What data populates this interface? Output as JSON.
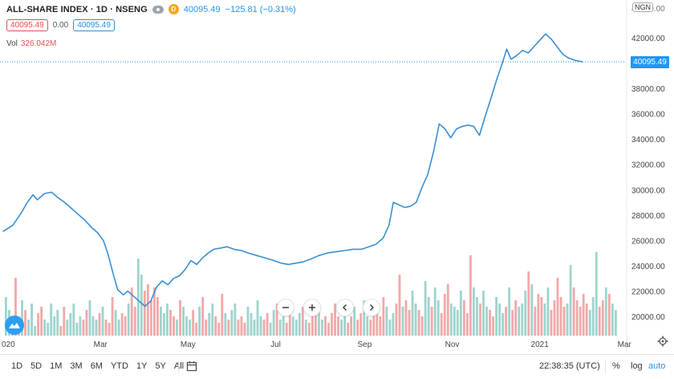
{
  "header": {
    "symbol": "ALL-SHARE INDEX · 1D · NSENG",
    "d_badge": "D",
    "last": "40095.49",
    "change": "−125.81 (−0.31%)",
    "bid": "40095.49",
    "spread": "0.00",
    "ask": "40095.49",
    "vol_label": "Vol",
    "vol_value": "326.042M",
    "currency": "NGN"
  },
  "price_tag": "40095.49",
  "y_ticks": [
    "42000.00",
    "40000.00",
    "38000.00",
    "36000.00",
    "34000.00",
    "32000.00",
    "30000.00",
    "28000.00",
    "26000.00",
    "24000.00",
    "22000.00",
    "20000.00"
  ],
  "y_top_label": "44000.00",
  "x_ticks": [
    {
      "label": "020",
      "date": "2020-01-01"
    },
    {
      "label": "Mar",
      "date": "2020-03-01"
    },
    {
      "label": "May",
      "date": "2020-05-01"
    },
    {
      "label": "Jul",
      "date": "2020-07-01"
    },
    {
      "label": "Sep",
      "date": "2020-09-01"
    },
    {
      "label": "Nov",
      "date": "2020-11-01"
    },
    {
      "label": "2021",
      "date": "2021-01-01"
    },
    {
      "label": "Mar",
      "date": "2021-03-01"
    }
  ],
  "ranges": [
    "1D",
    "5D",
    "1M",
    "3M",
    "6M",
    "YTD",
    "1Y",
    "5Y",
    "All"
  ],
  "footer": {
    "time": "22:38:35 (UTC)",
    "percent": "%",
    "log": "log",
    "auto": "auto"
  },
  "colors": {
    "line": "#3a8fd1",
    "vol_up": "#9ed4cd",
    "vol_down": "#f2a8a8",
    "price_tag": "#2196f3"
  },
  "chart_data": {
    "type": "line",
    "xlim": [
      "2019-12-22",
      "2021-03-02"
    ],
    "ylim": [
      19000,
      44000
    ],
    "series": [
      {
        "points": [
          [
            "2019-12-24",
            26700
          ],
          [
            "2019-12-31",
            27200
          ],
          [
            "2020-01-06",
            28200
          ],
          [
            "2020-01-10",
            29000
          ],
          [
            "2020-01-14",
            29600
          ],
          [
            "2020-01-17",
            29200
          ],
          [
            "2020-01-22",
            29700
          ],
          [
            "2020-01-27",
            29800
          ],
          [
            "2020-01-31",
            29400
          ],
          [
            "2020-02-05",
            29000
          ],
          [
            "2020-02-10",
            28500
          ],
          [
            "2020-02-15",
            28000
          ],
          [
            "2020-02-19",
            27600
          ],
          [
            "2020-02-24",
            27000
          ],
          [
            "2020-02-28",
            26600
          ],
          [
            "2020-03-03",
            26000
          ],
          [
            "2020-03-06",
            25000
          ],
          [
            "2020-03-10",
            23300
          ],
          [
            "2020-03-13",
            22100
          ],
          [
            "2020-03-17",
            21700
          ],
          [
            "2020-03-20",
            22000
          ],
          [
            "2020-03-24",
            21600
          ],
          [
            "2020-03-28",
            21200
          ],
          [
            "2020-04-01",
            20800
          ],
          [
            "2020-04-05",
            21200
          ],
          [
            "2020-04-09",
            22300
          ],
          [
            "2020-04-13",
            22800
          ],
          [
            "2020-04-17",
            22500
          ],
          [
            "2020-04-21",
            23000
          ],
          [
            "2020-04-25",
            23200
          ],
          [
            "2020-04-29",
            23700
          ],
          [
            "2020-05-03",
            24400
          ],
          [
            "2020-05-07",
            24100
          ],
          [
            "2020-05-11",
            24600
          ],
          [
            "2020-05-15",
            25000
          ],
          [
            "2020-05-19",
            25300
          ],
          [
            "2020-05-24",
            25400
          ],
          [
            "2020-05-28",
            25500
          ],
          [
            "2020-06-02",
            25300
          ],
          [
            "2020-06-07",
            25200
          ],
          [
            "2020-06-12",
            25000
          ],
          [
            "2020-06-18",
            24800
          ],
          [
            "2020-06-24",
            24600
          ],
          [
            "2020-06-30",
            24400
          ],
          [
            "2020-07-05",
            24200
          ],
          [
            "2020-07-10",
            24100
          ],
          [
            "2020-07-15",
            24200
          ],
          [
            "2020-07-20",
            24300
          ],
          [
            "2020-07-25",
            24500
          ],
          [
            "2020-07-31",
            24800
          ],
          [
            "2020-08-06",
            25000
          ],
          [
            "2020-08-12",
            25100
          ],
          [
            "2020-08-18",
            25200
          ],
          [
            "2020-08-24",
            25300
          ],
          [
            "2020-08-30",
            25300
          ],
          [
            "2020-09-04",
            25500
          ],
          [
            "2020-09-09",
            25700
          ],
          [
            "2020-09-14",
            26200
          ],
          [
            "2020-09-18",
            27200
          ],
          [
            "2020-09-21",
            29000
          ],
          [
            "2020-09-25",
            28800
          ],
          [
            "2020-09-29",
            28600
          ],
          [
            "2020-10-03",
            28700
          ],
          [
            "2020-10-07",
            29000
          ],
          [
            "2020-10-11",
            30200
          ],
          [
            "2020-10-15",
            31200
          ],
          [
            "2020-10-19",
            33000
          ],
          [
            "2020-10-23",
            35200
          ],
          [
            "2020-10-27",
            34800
          ],
          [
            "2020-10-31",
            34100
          ],
          [
            "2020-11-04",
            34800
          ],
          [
            "2020-11-08",
            35000
          ],
          [
            "2020-11-12",
            35100
          ],
          [
            "2020-11-16",
            35000
          ],
          [
            "2020-11-20",
            34300
          ],
          [
            "2020-11-24",
            35800
          ],
          [
            "2020-11-28",
            37200
          ],
          [
            "2020-12-02",
            38700
          ],
          [
            "2020-12-06",
            40000
          ],
          [
            "2020-12-09",
            41100
          ],
          [
            "2020-12-12",
            40300
          ],
          [
            "2020-12-16",
            40600
          ],
          [
            "2020-12-20",
            41000
          ],
          [
            "2020-12-24",
            40800
          ],
          [
            "2020-12-28",
            41300
          ],
          [
            "2021-01-01",
            41800
          ],
          [
            "2021-01-05",
            42300
          ],
          [
            "2021-01-09",
            41900
          ],
          [
            "2021-01-13",
            41300
          ],
          [
            "2021-01-17",
            40700
          ],
          [
            "2021-01-21",
            40400
          ],
          [
            "2021-01-26",
            40200
          ],
          [
            "2021-01-31",
            40095
          ]
        ]
      }
    ],
    "volume": [
      0.24,
      0.16,
      0.08,
      0.36,
      0.12,
      0.22,
      0.16,
      0.1,
      0.2,
      0.06,
      0.14,
      0.18,
      0.1,
      0.08,
      0.2,
      0.12,
      0.16,
      0.06,
      0.18,
      0.1,
      0.14,
      0.2,
      0.08,
      0.12,
      0.1,
      0.16,
      0.22,
      0.12,
      0.1,
      0.14,
      0.18,
      0.1,
      0.08,
      0.24,
      0.16,
      0.1,
      0.14,
      0.12,
      0.2,
      0.3,
      0.18,
      0.48,
      0.38,
      0.28,
      0.32,
      0.22,
      0.3,
      0.24,
      0.18,
      0.14,
      0.2,
      0.16,
      0.12,
      0.1,
      0.22,
      0.18,
      0.12,
      0.1,
      0.16,
      0.08,
      0.18,
      0.24,
      0.1,
      0.14,
      0.2,
      0.12,
      0.08,
      0.26,
      0.14,
      0.1,
      0.16,
      0.2,
      0.1,
      0.12,
      0.08,
      0.18,
      0.14,
      0.1,
      0.22,
      0.12,
      0.1,
      0.14,
      0.08,
      0.16,
      0.2,
      0.1,
      0.12,
      0.08,
      0.16,
      0.12,
      0.1,
      0.14,
      0.18,
      0.1,
      0.08,
      0.12,
      0.16,
      0.2,
      0.1,
      0.12,
      0.08,
      0.14,
      0.2,
      0.12,
      0.1,
      0.16,
      0.08,
      0.12,
      0.18,
      0.1,
      0.14,
      0.22,
      0.12,
      0.1,
      0.2,
      0.16,
      0.12,
      0.24,
      0.18,
      0.1,
      0.14,
      0.2,
      0.38,
      0.18,
      0.22,
      0.16,
      0.28,
      0.2,
      0.16,
      0.12,
      0.34,
      0.24,
      0.18,
      0.3,
      0.22,
      0.14,
      0.26,
      0.32,
      0.2,
      0.18,
      0.16,
      0.28,
      0.22,
      0.14,
      0.5,
      0.3,
      0.24,
      0.2,
      0.28,
      0.18,
      0.16,
      0.12,
      0.24,
      0.2,
      0.14,
      0.18,
      0.3,
      0.16,
      0.22,
      0.18,
      0.2,
      0.28,
      0.4,
      0.32,
      0.18,
      0.26,
      0.24,
      0.2,
      0.3,
      0.16,
      0.22,
      0.36,
      0.24,
      0.18,
      0.2,
      0.44,
      0.3,
      0.22,
      0.18,
      0.26,
      0.2,
      0.16,
      0.24,
      0.52,
      0.18,
      0.22,
      0.3,
      0.26,
      0.2,
      0.16
    ]
  }
}
